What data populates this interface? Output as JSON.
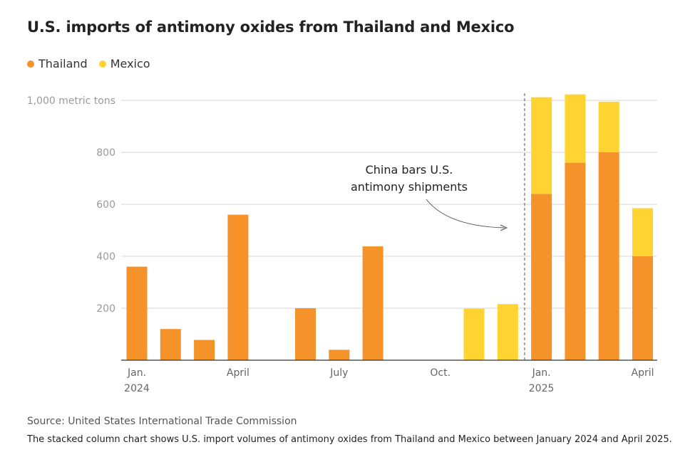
{
  "chart_data": {
    "type": "bar",
    "stacked": true,
    "title": "U.S. imports of antimony oxides from Thailand and Mexico",
    "ylabel": "metric tons",
    "ylim": [
      0,
      1000
    ],
    "yticks": [
      {
        "value": 1000,
        "label": "1,000 metric tons"
      },
      {
        "value": 800,
        "label": "800"
      },
      {
        "value": 600,
        "label": "600"
      },
      {
        "value": 400,
        "label": "400"
      },
      {
        "value": 200,
        "label": "200"
      }
    ],
    "categories": [
      "2024-01",
      "2024-02",
      "2024-03",
      "2024-04",
      "2024-05",
      "2024-06",
      "2024-07",
      "2024-08",
      "2024-09",
      "2024-10",
      "2024-11",
      "2024-12",
      "2025-01",
      "2025-02",
      "2025-03",
      "2025-04"
    ],
    "xtick_labels": [
      {
        "index": 0,
        "lines": [
          "Jan.",
          "2024"
        ]
      },
      {
        "index": 3,
        "lines": [
          "April"
        ]
      },
      {
        "index": 6,
        "lines": [
          "July"
        ]
      },
      {
        "index": 9,
        "lines": [
          "Oct."
        ]
      },
      {
        "index": 12,
        "lines": [
          "Jan.",
          "2025"
        ]
      },
      {
        "index": 15,
        "lines": [
          "April"
        ]
      }
    ],
    "series": [
      {
        "name": "Thailand",
        "color": "#f5922a",
        "values": [
          360,
          120,
          78,
          560,
          0,
          200,
          40,
          438,
          0,
          0,
          0,
          0,
          640,
          760,
          800,
          400
        ]
      },
      {
        "name": "Mexico",
        "color": "#ffd432",
        "values": [
          0,
          0,
          0,
          0,
          0,
          0,
          0,
          0,
          0,
          0,
          198,
          216,
          372,
          263,
          195,
          185
        ]
      }
    ],
    "annotation": {
      "lines": [
        "China bars U.S.",
        "antimony shipments"
      ],
      "at_index": 11.5
    },
    "grid": true,
    "legend": "top-left"
  },
  "source": "Source: United States International Trade Commission",
  "caption": "The stacked column chart shows U.S. import volumes of antimony oxides from Thailand and Mexico between January 2024 and April 2025."
}
